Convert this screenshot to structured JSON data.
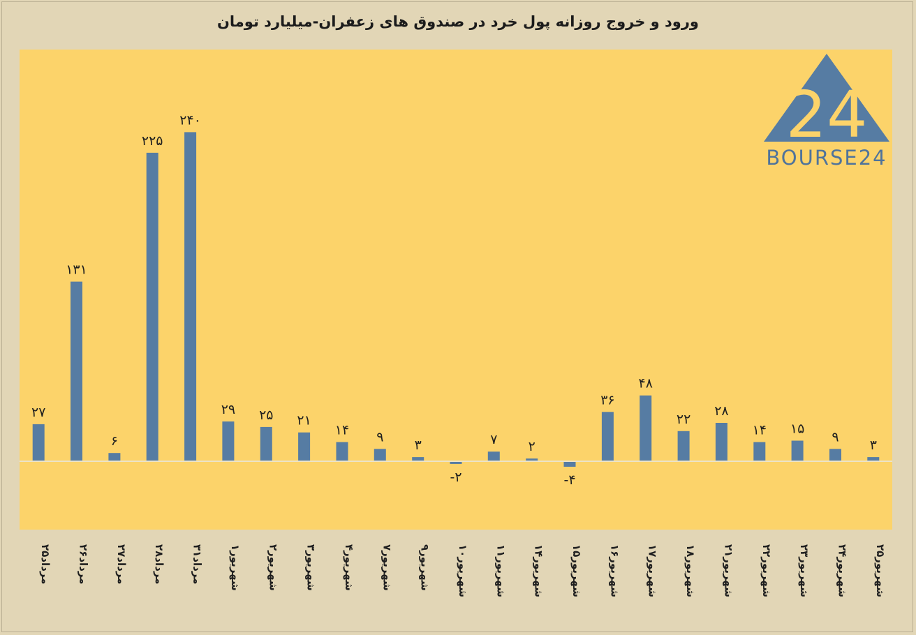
{
  "chart_data": {
    "type": "bar",
    "title": "ورود و خروج روزانه پول خرد در صندوق های زعفران-میلیارد تومان",
    "categories": [
      "۲۵مرداد",
      "۲۶مرداد",
      "۲۷مرداد",
      "۲۸مرداد",
      "۳۱مرداد",
      "۱شهریور",
      "۲شهریور",
      "۳شهریور",
      "۴شهریور",
      "۷شهریور",
      "۹شهریور",
      "۱۰شهریور",
      "۱۱شهریور",
      "۱۴شهریور",
      "۱۵شهریور",
      "۱۶شهریور",
      "۱۷شهریور",
      "۱۸شهریور",
      "۲۱شهریور",
      "۲۲شهریور",
      "۲۳شهریور",
      "۲۴شهریور",
      "۲۵شهریور"
    ],
    "values": [
      27,
      131,
      6,
      225,
      240,
      29,
      25,
      21,
      14,
      9,
      3,
      -2,
      7,
      2,
      -4,
      36,
      48,
      22,
      28,
      14,
      15,
      9,
      3
    ],
    "value_labels": [
      "۲۷",
      "۱۳۱",
      "۶",
      "۲۲۵",
      "۲۴۰",
      "۲۹",
      "۲۵",
      "۲۱",
      "۱۴",
      "۹",
      "۳",
      "-۲",
      "۷",
      "۲",
      "-۴",
      "۳۶",
      "۴۸",
      "۲۲",
      "۲۸",
      "۱۴",
      "۱۵",
      "۹",
      "۳"
    ],
    "xlabel": "",
    "ylabel": "",
    "ylim": [
      -50,
      300
    ],
    "grid": false,
    "legend": "none",
    "colors": {
      "bar": "#567ca3",
      "plot_background": "#fcd36a",
      "page_background": "#e2d6b6",
      "zero_line": "#ece3c8"
    }
  },
  "logo": {
    "text": "BOURSE24",
    "mark": "24",
    "icon": "triangle-logo-icon",
    "color": "#567ca3"
  }
}
